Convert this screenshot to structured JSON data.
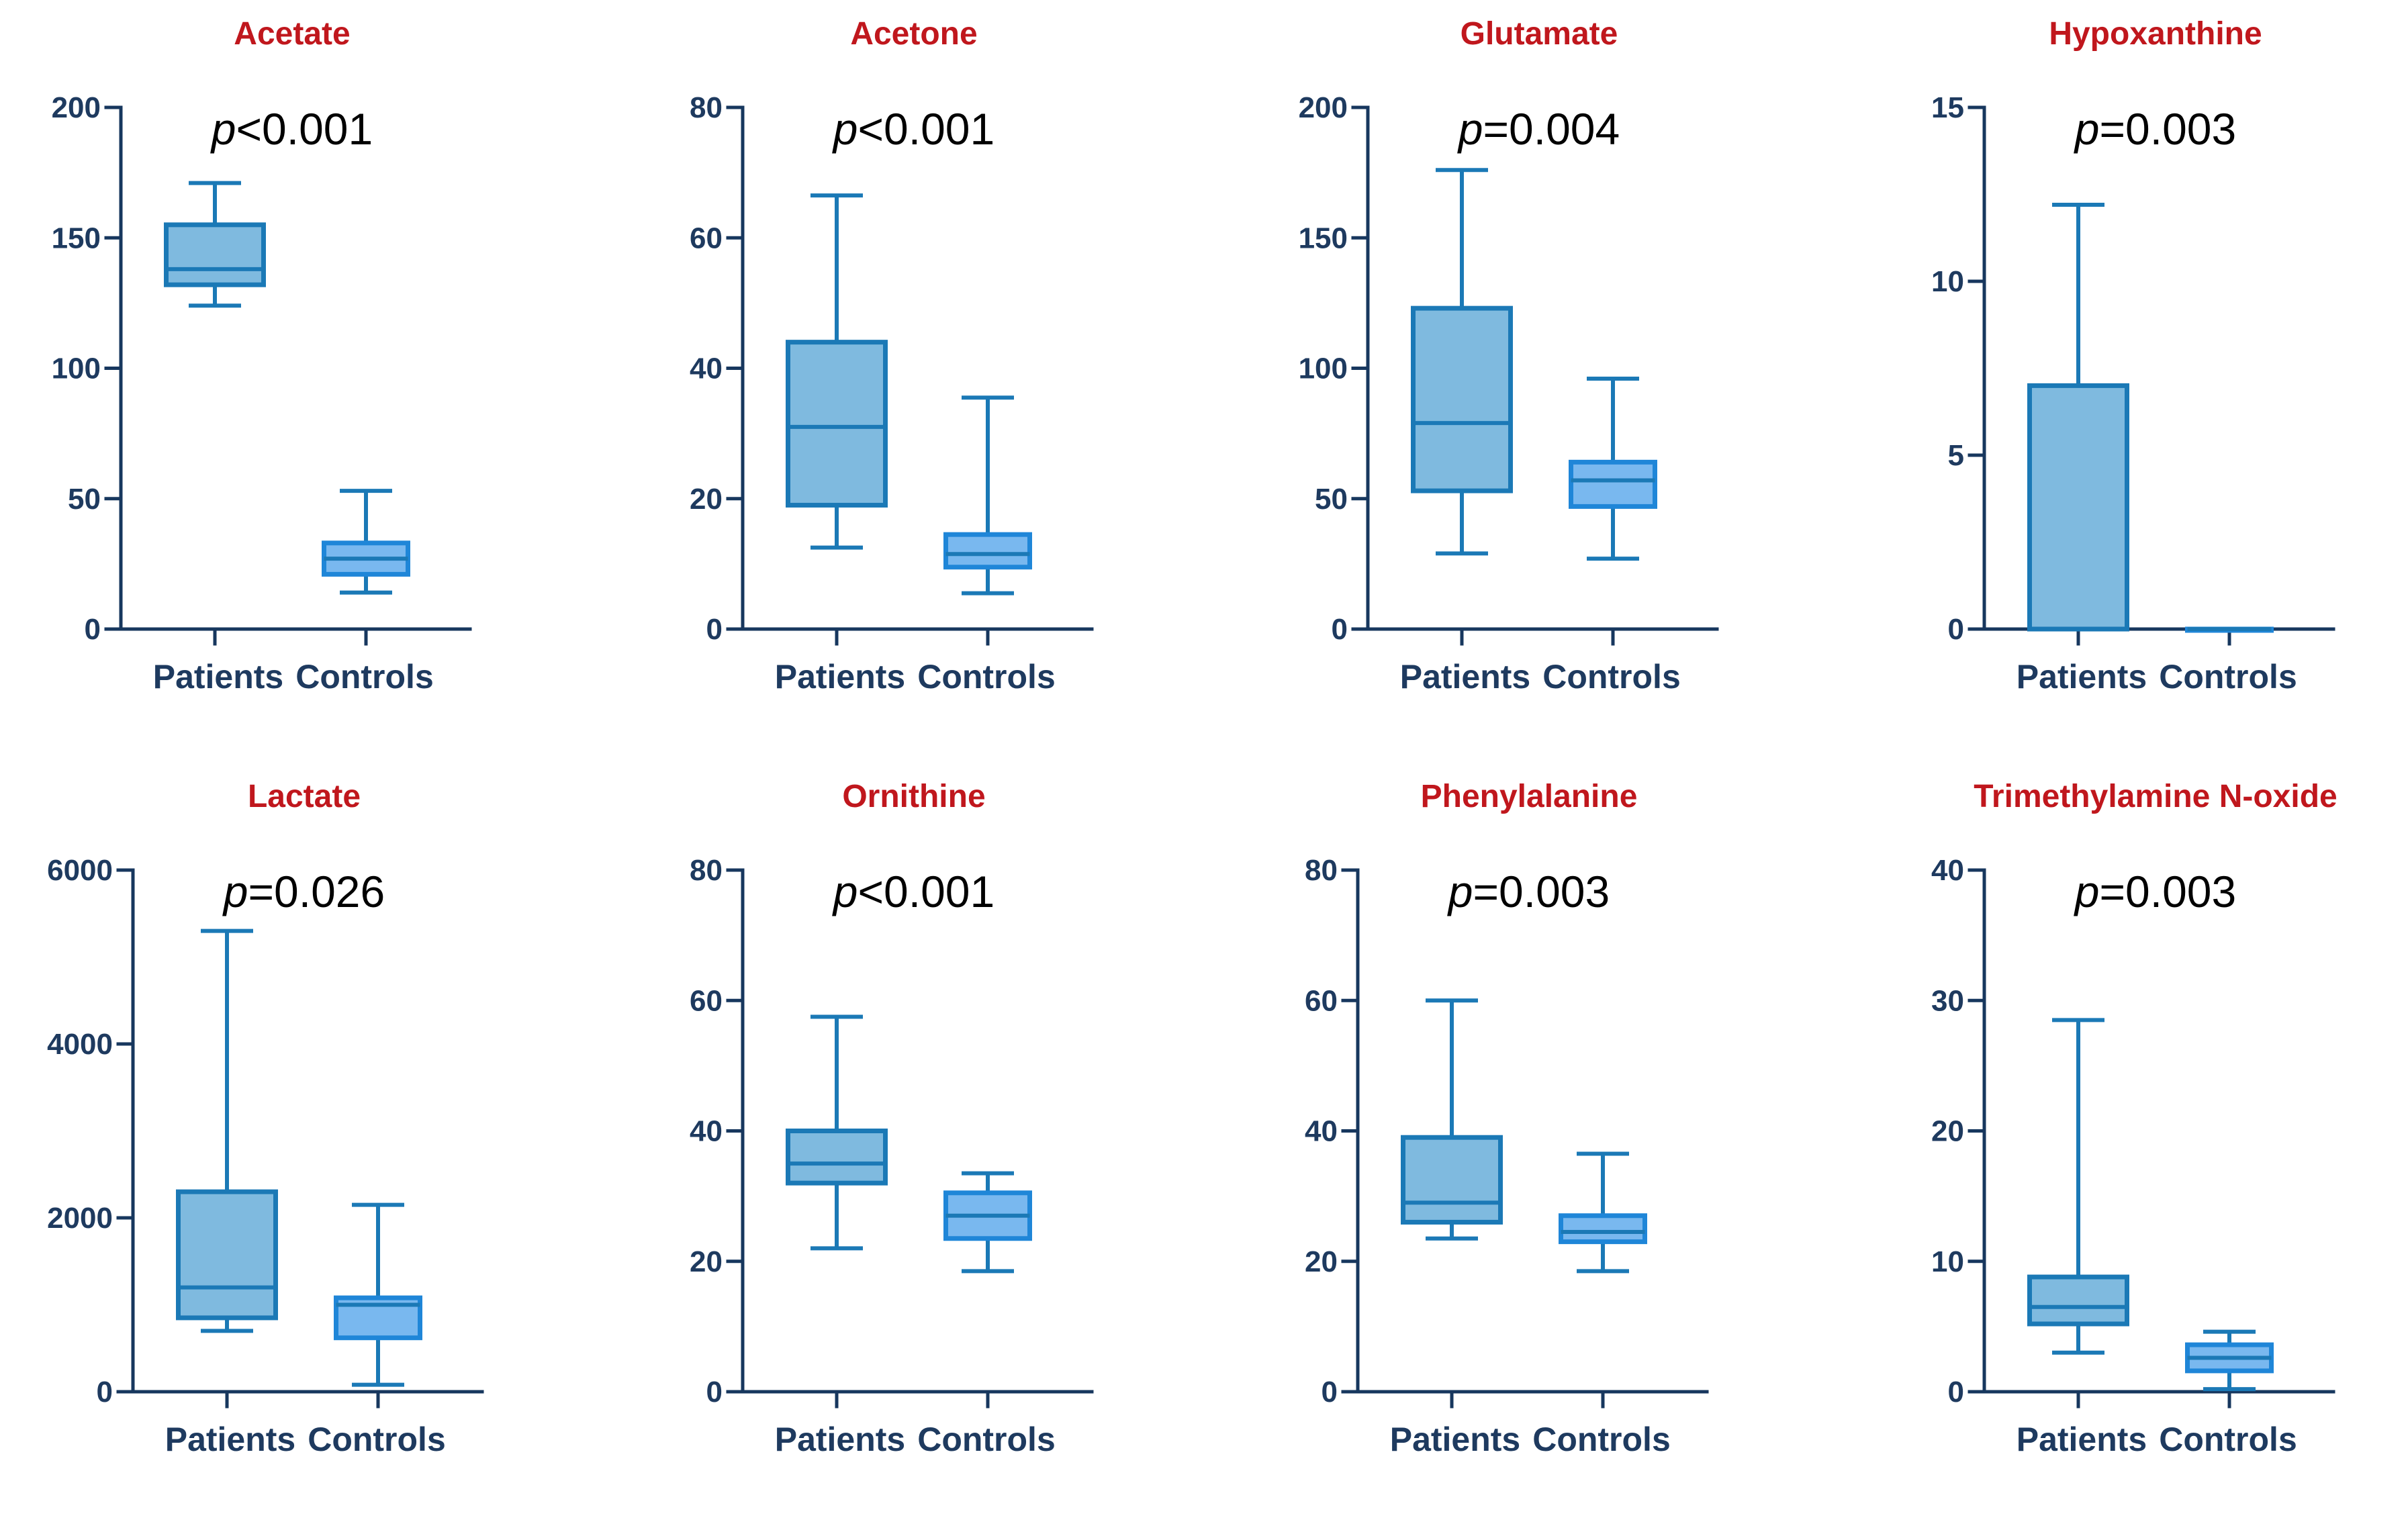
{
  "figure": {
    "categories": [
      "Patients",
      "Controls"
    ],
    "colors": {
      "title": "#c0171d",
      "axis": "#17375e",
      "patients_fill": "#7fbadf",
      "controls_fill": "#79b8ef",
      "box_stroke": "#1b79b6"
    }
  },
  "chart_data": [
    {
      "type": "box",
      "title": "Acetate",
      "p_label": "p",
      "p_value": "<0.001",
      "categories": [
        "Patients",
        "Controls"
      ],
      "ylim": [
        0,
        200
      ],
      "yticks": [
        0,
        50,
        100,
        150,
        200
      ],
      "series": [
        {
          "name": "Patients",
          "min": 124,
          "q1": 132,
          "median": 138,
          "q3": 155,
          "max": 171
        },
        {
          "name": "Controls",
          "min": 14,
          "q1": 21,
          "median": 27,
          "q3": 33,
          "max": 53
        }
      ]
    },
    {
      "type": "box",
      "title": "Acetone",
      "p_label": "p",
      "p_value": "<0.001",
      "categories": [
        "Patients",
        "Controls"
      ],
      "ylim": [
        0,
        80
      ],
      "yticks": [
        0,
        20,
        40,
        60,
        80
      ],
      "series": [
        {
          "name": "Patients",
          "min": 12.5,
          "q1": 19,
          "median": 31,
          "q3": 44,
          "max": 66.5
        },
        {
          "name": "Controls",
          "min": 5.5,
          "q1": 9.5,
          "median": 11.5,
          "q3": 14.5,
          "max": 35.5
        }
      ]
    },
    {
      "type": "box",
      "title": "Glutamate",
      "p_label": "p",
      "p_value": "=0.004",
      "categories": [
        "Patients",
        "Controls"
      ],
      "ylim": [
        0,
        200
      ],
      "yticks": [
        0,
        50,
        100,
        150,
        200
      ],
      "series": [
        {
          "name": "Patients",
          "min": 29,
          "q1": 53,
          "median": 79,
          "q3": 123,
          "max": 176
        },
        {
          "name": "Controls",
          "min": 27,
          "q1": 47,
          "median": 57,
          "q3": 64,
          "max": 96
        }
      ]
    },
    {
      "type": "box",
      "title": "Hypoxanthine",
      "p_label": "p",
      "p_value": "=0.003",
      "categories": [
        "Patients",
        "Controls"
      ],
      "ylim": [
        0,
        15
      ],
      "yticks": [
        0,
        5,
        10,
        15
      ],
      "series": [
        {
          "name": "Patients",
          "min": 0,
          "q1": 0,
          "median": 0,
          "q3": 7,
          "max": 12.2
        },
        {
          "name": "Controls",
          "min": 0,
          "q1": 0,
          "median": 0,
          "q3": 0,
          "max": 0
        }
      ]
    },
    {
      "type": "box",
      "title": "Lactate",
      "p_label": "p",
      "p_value": "=0.026",
      "categories": [
        "Patients",
        "Controls"
      ],
      "ylim": [
        0,
        6000
      ],
      "yticks": [
        0,
        2000,
        4000,
        6000
      ],
      "series": [
        {
          "name": "Patients",
          "min": 700,
          "q1": 850,
          "median": 1200,
          "q3": 2300,
          "max": 5300
        },
        {
          "name": "Controls",
          "min": 80,
          "q1": 620,
          "median": 1000,
          "q3": 1080,
          "max": 2150
        }
      ]
    },
    {
      "type": "box",
      "title": "Ornithine",
      "p_label": "p",
      "p_value": "<0.001",
      "categories": [
        "Patients",
        "Controls"
      ],
      "ylim": [
        0,
        80
      ],
      "yticks": [
        0,
        20,
        40,
        60,
        80
      ],
      "series": [
        {
          "name": "Patients",
          "min": 22,
          "q1": 32,
          "median": 35,
          "q3": 40,
          "max": 57.5
        },
        {
          "name": "Controls",
          "min": 18.5,
          "q1": 23.5,
          "median": 27,
          "q3": 30.5,
          "max": 33.5
        }
      ]
    },
    {
      "type": "box",
      "title": "Phenylalanine",
      "p_label": "p",
      "p_value": "=0.003",
      "categories": [
        "Patients",
        "Controls"
      ],
      "ylim": [
        0,
        80
      ],
      "yticks": [
        0,
        20,
        40,
        60,
        80
      ],
      "series": [
        {
          "name": "Patients",
          "min": 23.5,
          "q1": 26,
          "median": 29,
          "q3": 39,
          "max": 60
        },
        {
          "name": "Controls",
          "min": 18.5,
          "q1": 23,
          "median": 24.5,
          "q3": 27,
          "max": 36.5
        }
      ]
    },
    {
      "type": "box",
      "title": "Trimethylamine N-oxide",
      "p_label": "p",
      "p_value": "=0.003",
      "categories": [
        "Patients",
        "Controls"
      ],
      "ylim": [
        0,
        40
      ],
      "yticks": [
        0,
        10,
        20,
        30,
        40
      ],
      "series": [
        {
          "name": "Patients",
          "min": 3,
          "q1": 5.2,
          "median": 6.5,
          "q3": 8.8,
          "max": 28.5
        },
        {
          "name": "Controls",
          "min": 0.2,
          "q1": 1.6,
          "median": 2.6,
          "q3": 3.6,
          "max": 4.6
        }
      ]
    }
  ]
}
